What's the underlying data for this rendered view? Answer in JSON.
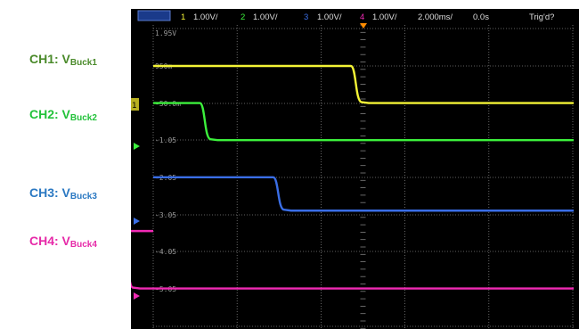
{
  "labels": [
    {
      "prefix": "CH1: V",
      "sub": "Buck1",
      "color": "#4a8a2a"
    },
    {
      "prefix": "CH2: V",
      "sub": "Buck2",
      "color": "#22c23a"
    },
    {
      "prefix": "CH3: V",
      "sub": "Buck3",
      "color": "#2a78c2"
    },
    {
      "prefix": "CH4: V",
      "sub": "Buck4",
      "color": "#e62aa8"
    }
  ],
  "header": {
    "ch1_num": "1",
    "ch1_scale": "1.00V/",
    "ch2_num": "2",
    "ch2_scale": "1.00V/",
    "ch3_num": "3",
    "ch3_scale": "1.00V/",
    "ch4_num": "4",
    "ch4_scale": "1.00V/",
    "timebase": "2.000ms/",
    "delay": "0.0s",
    "trigger": "Trig'd?"
  },
  "levels": [
    "1.95V",
    "950m",
    "-50.0m",
    "-1.05",
    "-2.05",
    "-3.05",
    "-4.05",
    "-5.05"
  ],
  "colors": {
    "ch1": "#f4f436",
    "ch2": "#3cf03c",
    "ch3": "#3a6ee6",
    "ch4": "#f02ab4",
    "grid": "#808080",
    "trigger": "#ff8c00"
  },
  "traces": {
    "ch1": {
      "high": 0.95,
      "low": -0.05,
      "fall_ms": -0.3
    },
    "ch2": {
      "high": -0.05,
      "low": -1.05,
      "fall_ms": -3.9
    },
    "ch3": {
      "high": -2.05,
      "low": -2.95,
      "fall_ms": -2.15
    },
    "ch4": {
      "high": -3.5,
      "low": -5.05,
      "fall_ms": -5.75
    }
  }
}
